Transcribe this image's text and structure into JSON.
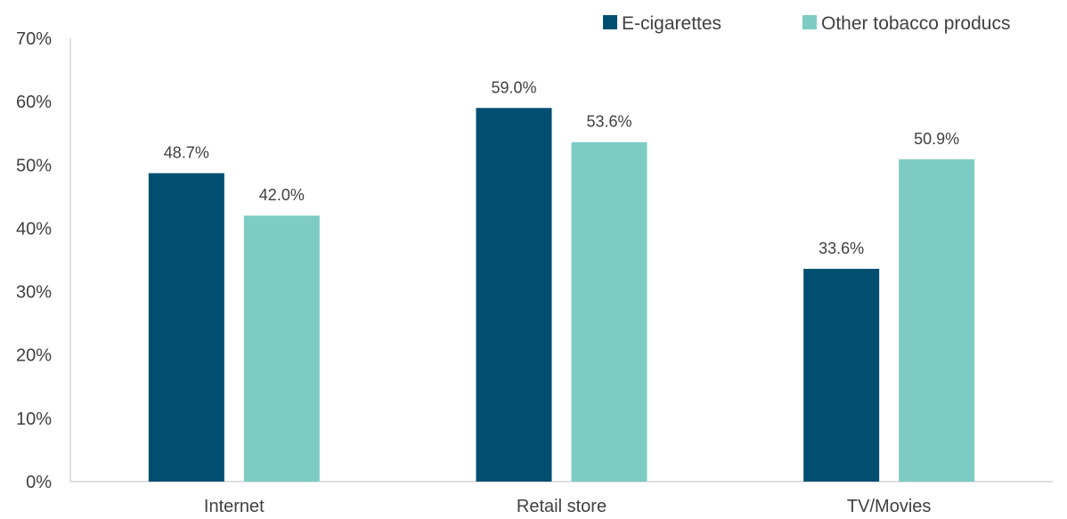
{
  "chart_data": {
    "type": "bar",
    "categories": [
      "Internet",
      "Retail store",
      "TV/Movies"
    ],
    "series": [
      {
        "name": "E-cigarettes",
        "values": [
          48.7,
          59.0,
          33.6
        ],
        "color": "#004f71",
        "labels": [
          "48.7%",
          "59.0%",
          "33.6%"
        ]
      },
      {
        "name": "Other tobacco producs",
        "values": [
          42.0,
          53.6,
          50.9
        ],
        "color": "#7dccc4",
        "labels": [
          "42.0%",
          "53.6%",
          "50.9%"
        ]
      }
    ],
    "ylim": [
      0,
      70
    ],
    "yticks": [
      0,
      10,
      20,
      30,
      40,
      50,
      60,
      70
    ],
    "ytick_labels": [
      "0%",
      "10%",
      "20%",
      "30%",
      "40%",
      "50%",
      "60%",
      "70%"
    ],
    "title": "",
    "xlabel": "",
    "ylabel": "",
    "grid": false,
    "legend_position": "top-right"
  }
}
